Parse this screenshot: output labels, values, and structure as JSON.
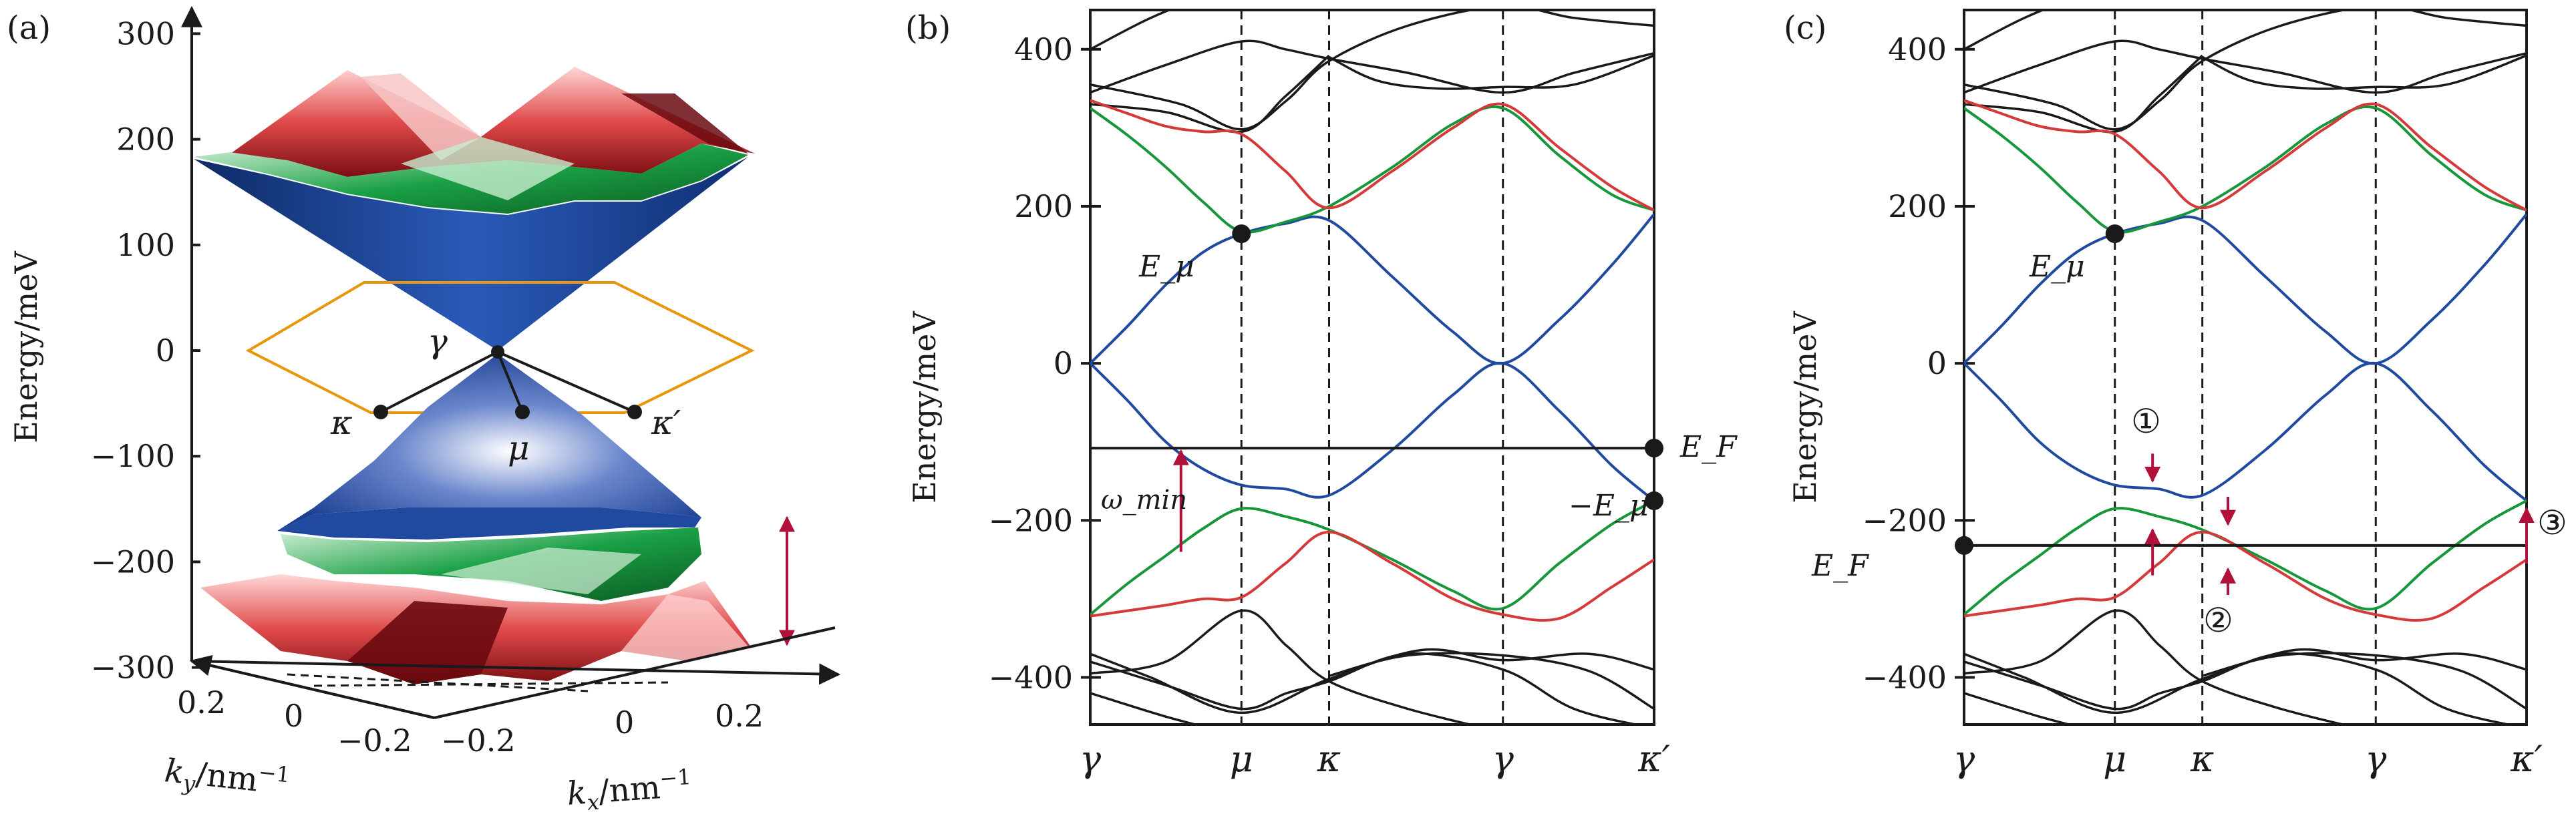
{
  "chart_data": [
    {
      "panel": "(a)",
      "type": "surface-3d",
      "description_labels": {
        "gamma": "γ",
        "kappa": "κ",
        "mu": "μ",
        "kappa_prime": "κ′"
      },
      "ylabel": "Energy/meV",
      "ylim": [
        -300,
        350
      ],
      "yticks": [
        {
          "v": 300,
          "t": "300"
        },
        {
          "v": 200,
          "t": "200"
        },
        {
          "v": 100,
          "t": "100"
        },
        {
          "v": 0,
          "t": "0"
        },
        {
          "v": -100,
          "t": "−100"
        },
        {
          "v": -200,
          "t": "−200"
        },
        {
          "v": -300,
          "t": "−300"
        }
      ],
      "kx_label": "k_x/nm^−1",
      "ky_label": "k_y/nm^−1",
      "kx_ticks": [
        "−0.2",
        "0",
        "0.2"
      ],
      "ky_ticks": [
        "0.2",
        "0",
        "−0.2"
      ],
      "colors": {
        "red": "#d43a3a",
        "green": "#18963a",
        "blue": "#1f4aa0",
        "orange": "#e8960c",
        "arrow": "#b0103a"
      }
    },
    {
      "panel": "(b)",
      "type": "line",
      "ylabel": "Energy/meV",
      "ylim": [
        -460,
        450
      ],
      "yticks": [
        {
          "v": 400,
          "t": "400"
        },
        {
          "v": 200,
          "t": "200"
        },
        {
          "v": 0,
          "t": "0"
        },
        {
          "v": -200,
          "t": "−200"
        },
        {
          "v": -400,
          "t": "−400"
        }
      ],
      "xticks": [
        {
          "x": 0,
          "t": "γ"
        },
        {
          "x": 1,
          "t": "μ"
        },
        {
          "x": 1.58,
          "t": "κ"
        },
        {
          "x": 2.73,
          "t": "γ"
        },
        {
          "x": 3.73,
          "t": "κ′"
        }
      ],
      "fermi_level": -108,
      "series": [
        {
          "name": "blue-upper",
          "color": "#1f4aa0",
          "x": [
            0,
            0.25,
            0.5,
            0.75,
            1,
            1.29,
            1.58,
            2.0,
            2.4,
            2.73,
            3.1,
            3.45,
            3.73
          ],
          "y": [
            0,
            48,
            100,
            142,
            165,
            178,
            182,
            110,
            40,
            0,
            55,
            125,
            190
          ]
        },
        {
          "name": "blue-lower",
          "color": "#1f4aa0",
          "x": [
            0,
            0.25,
            0.5,
            0.75,
            1,
            1.29,
            1.58,
            2.0,
            2.4,
            2.73,
            3.1,
            3.45,
            3.73
          ],
          "y": [
            0,
            -48,
            -100,
            -135,
            -155,
            -160,
            -168,
            -110,
            -40,
            0,
            -60,
            -130,
            -175
          ]
        },
        {
          "name": "green-upper",
          "color": "#18963a",
          "x": [
            0,
            0.25,
            0.5,
            0.75,
            1,
            1.29,
            1.58,
            2.0,
            2.4,
            2.73,
            3.1,
            3.45,
            3.73
          ],
          "y": [
            325,
            290,
            250,
            205,
            168,
            180,
            200,
            250,
            305,
            325,
            265,
            215,
            195
          ]
        },
        {
          "name": "green-lower",
          "color": "#18963a",
          "x": [
            0,
            0.25,
            0.5,
            0.75,
            1,
            1.29,
            1.58,
            2.0,
            2.4,
            2.73,
            3.1,
            3.45,
            3.73
          ],
          "y": [
            -320,
            -280,
            -245,
            -210,
            -185,
            -195,
            -212,
            -250,
            -290,
            -312,
            -255,
            -205,
            -175
          ]
        },
        {
          "name": "red-upper",
          "color": "#d43a3a",
          "x": [
            0,
            0.25,
            0.5,
            0.75,
            1,
            1.29,
            1.58,
            2.0,
            2.4,
            2.73,
            3.1,
            3.45,
            3.73
          ],
          "y": [
            335,
            318,
            302,
            295,
            292,
            245,
            198,
            245,
            300,
            330,
            275,
            225,
            195
          ]
        },
        {
          "name": "red-lower",
          "color": "#d43a3a",
          "x": [
            0,
            0.25,
            0.5,
            0.75,
            1,
            1.29,
            1.58,
            2.0,
            2.4,
            2.73,
            3.1,
            3.45,
            3.73
          ],
          "y": [
            -322,
            -315,
            -308,
            -300,
            -298,
            -255,
            -215,
            -255,
            -300,
            -320,
            -325,
            -285,
            -250
          ]
        }
      ],
      "annotations": {
        "e_mu": "E_μ",
        "neg_e_mu": "−E_μ",
        "e_f": "E_F",
        "omega_min": "ω_min"
      }
    },
    {
      "panel": "(c)",
      "type": "line",
      "ylabel": "Energy/meV",
      "ylim": [
        -460,
        450
      ],
      "yticks": [
        {
          "v": 400,
          "t": "400"
        },
        {
          "v": 200,
          "t": "200"
        },
        {
          "v": 0,
          "t": "0"
        },
        {
          "v": -200,
          "t": "−200"
        },
        {
          "v": -400,
          "t": "−400"
        }
      ],
      "xticks": [
        {
          "x": 0,
          "t": "γ"
        },
        {
          "x": 1,
          "t": "μ"
        },
        {
          "x": 1.58,
          "t": "κ"
        },
        {
          "x": 2.73,
          "t": "γ"
        },
        {
          "x": 3.73,
          "t": "κ′"
        }
      ],
      "fermi_level": -232,
      "annotations": {
        "e_mu": "E_μ",
        "e_f": "E_F",
        "mark1": "①",
        "mark2": "②",
        "mark3": "③"
      }
    }
  ]
}
